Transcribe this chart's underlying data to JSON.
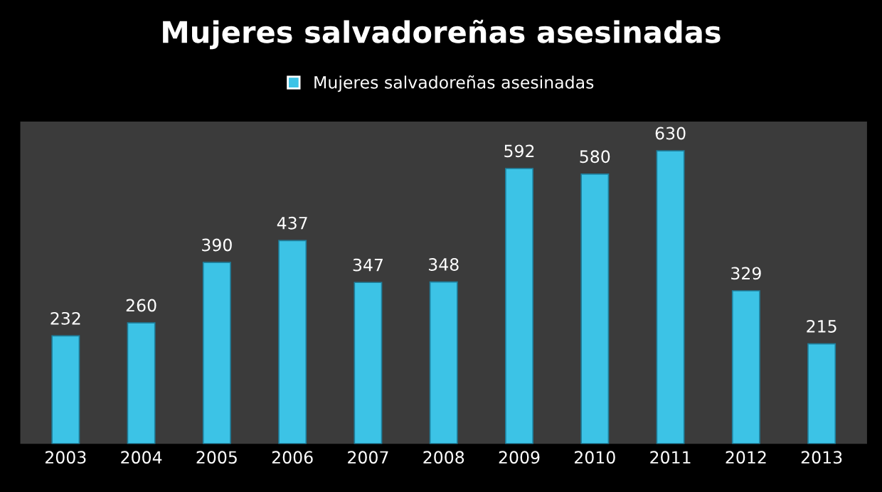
{
  "chart_data": {
    "type": "bar",
    "title": "Mujeres salvadoreñas asesinadas",
    "categories": [
      "2003",
      "2004",
      "2005",
      "2006",
      "2007",
      "2008",
      "2009",
      "2010",
      "2011",
      "2012",
      "2013"
    ],
    "series": [
      {
        "name": "Mujeres salvadoreñas asesinadas",
        "color": "#3cc3e6",
        "values": [
          232,
          260,
          390,
          437,
          347,
          348,
          592,
          580,
          630,
          329,
          215
        ]
      }
    ],
    "data_labels": true,
    "legend": "top",
    "grid": false
  }
}
